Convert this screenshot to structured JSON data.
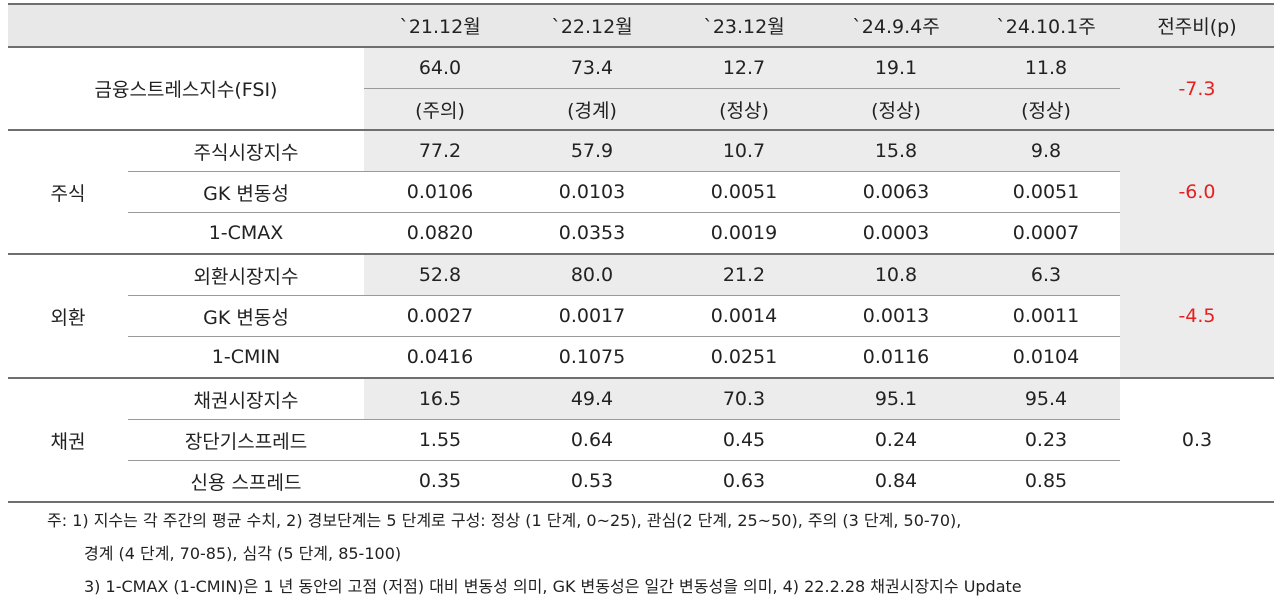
{
  "header": {
    "corner": "",
    "cols": [
      "`21.12월",
      "`22.12월",
      "`23.12월",
      "`24.9.4주",
      "`24.10.1주",
      "전주비(p)"
    ]
  },
  "fsi": {
    "label": "금융스트레스지수(FSI)",
    "values": [
      "64.0",
      "73.4",
      "12.7",
      "19.1",
      "11.8"
    ],
    "states": [
      "(주의)",
      "(경계)",
      "(정상)",
      "(정상)",
      "(정상)"
    ],
    "change": "-7.3"
  },
  "groups": [
    {
      "name": "주식",
      "change": "-6.0",
      "rows": [
        {
          "label": "주식시장지수",
          "values": [
            "77.2",
            "57.9",
            "10.7",
            "15.8",
            "9.8"
          ]
        },
        {
          "label": "GK 변동성",
          "values": [
            "0.0106",
            "0.0103",
            "0.0051",
            "0.0063",
            "0.0051"
          ]
        },
        {
          "label": "1-CMAX",
          "values": [
            "0.0820",
            "0.0353",
            "0.0019",
            "0.0003",
            "0.0007"
          ]
        }
      ]
    },
    {
      "name": "외환",
      "change": "-4.5",
      "rows": [
        {
          "label": "외환시장지수",
          "values": [
            "52.8",
            "80.0",
            "21.2",
            "10.8",
            "6.3"
          ]
        },
        {
          "label": "GK 변동성",
          "values": [
            "0.0027",
            "0.0017",
            "0.0014",
            "0.0013",
            "0.0011"
          ]
        },
        {
          "label": "1-CMIN",
          "values": [
            "0.0416",
            "0.1075",
            "0.0251",
            "0.0116",
            "0.0104"
          ]
        }
      ]
    },
    {
      "name": "채권",
      "change": "0.3",
      "rows": [
        {
          "label": "채권시장지수",
          "values": [
            "16.5",
            "49.4",
            "70.3",
            "95.1",
            "95.4"
          ]
        },
        {
          "label": "장단기스프레드",
          "values": [
            "1.55",
            "0.64",
            "0.45",
            "0.24",
            "0.23"
          ]
        },
        {
          "label": "신용 스프레드",
          "values": [
            "0.35",
            "0.53",
            "0.63",
            "0.84",
            "0.85"
          ]
        }
      ]
    }
  ],
  "notes": {
    "line1": "주: 1) 지수는 각 주간의 평균 수치, 2) 경보단계는 5 단계로 구성: 정상 (1 단계, 0~25), 관심(2 단계, 25~50), 주의 (3 단계, 50-70),",
    "line2": "경계 (4 단계, 70-85), 심각 (5 단계, 85-100)",
    "line3": "3) 1-CMAX (1-CMIN)은 1 년 동안의 고점 (저점) 대비 변동성 의미, GK 변동성은 일간 변동성을 의미, 4) 22.2.28 채권시장지수 Update"
  },
  "colors": {
    "header_bg": "#e8e8e8",
    "highlight_bg": "#ececec",
    "negative": "#e62020",
    "rule": "#6f6f6f"
  }
}
